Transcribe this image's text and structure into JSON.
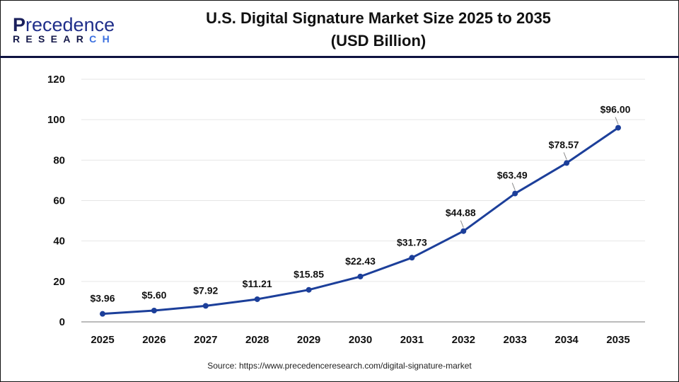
{
  "logo": {
    "text_top": "Precedence",
    "text_bottom": "RESEARCH"
  },
  "title_line1": "U.S. Digital Signature Market Size 2025 to 2035",
  "title_line2": "(USD Billion)",
  "source": "Source: https://www.precedenceresearch.com/digital-signature-market",
  "colors": {
    "line": "#1c3f9a",
    "header_rule": "#0d1240",
    "grid": "#e6e6e6"
  },
  "chart_data": {
    "type": "line",
    "title": "U.S. Digital Signature Market Size 2025 to 2035 (USD Billion)",
    "categories": [
      "2025",
      "2026",
      "2027",
      "2028",
      "2029",
      "2030",
      "2031",
      "2032",
      "2033",
      "2034",
      "2035"
    ],
    "values": [
      3.96,
      5.6,
      7.92,
      11.21,
      15.85,
      22.43,
      31.73,
      44.88,
      63.49,
      78.57,
      96.0
    ],
    "data_labels": [
      "$3.96",
      "$5.60",
      "$7.92",
      "$11.21",
      "$15.85",
      "$22.43",
      "$31.73",
      "$44.88",
      "$63.49",
      "$78.57",
      "$96.00"
    ],
    "ylim": [
      0,
      120
    ],
    "yticks": [
      0,
      20,
      40,
      60,
      80,
      100,
      120
    ],
    "grid": true,
    "legend": "none"
  }
}
